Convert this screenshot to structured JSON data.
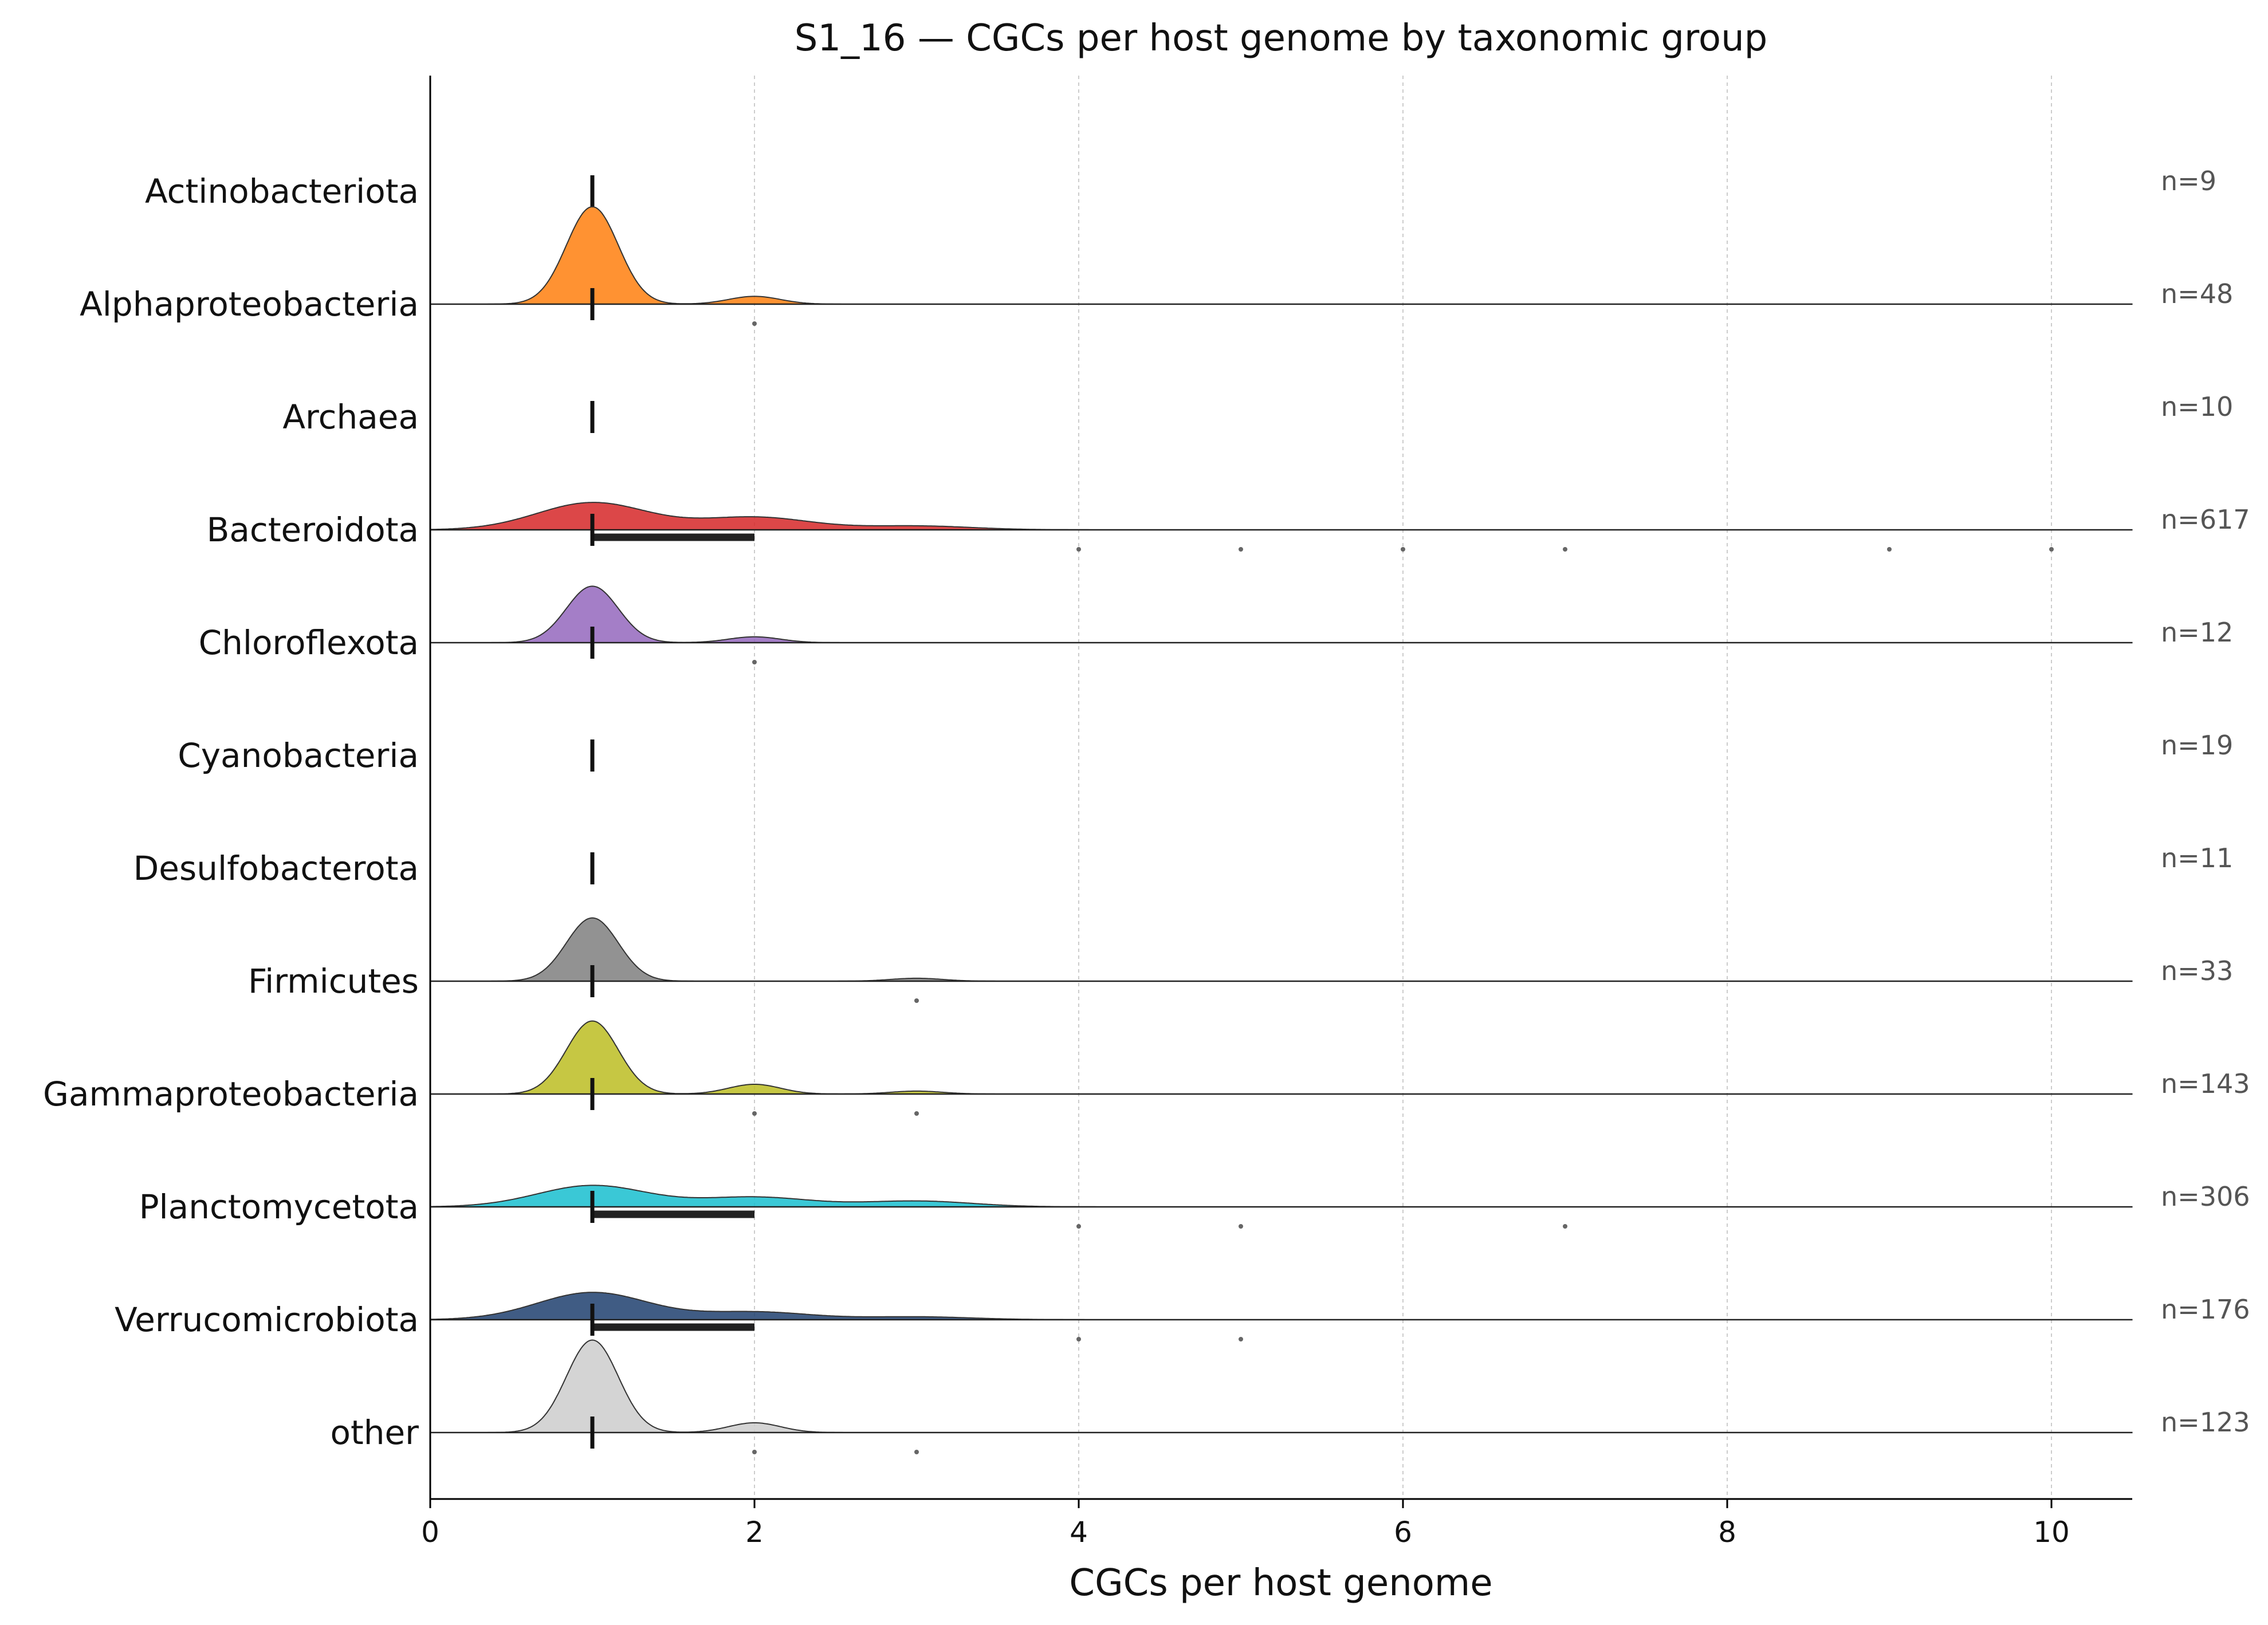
{
  "chart_data": {
    "type": "ridgeline",
    "title": "S1_16 — CGCs per host genome by taxonomic group",
    "xlabel": "CGCs per host genome",
    "ylabel": "",
    "xlim": [
      0,
      10.5
    ],
    "xticks": [
      0,
      2,
      4,
      6,
      8,
      10
    ],
    "grid": "x-dotted",
    "groups": [
      {
        "name": "Actinobacteriota",
        "n_label": "n=9",
        "color": "#1f77b4",
        "peaks": [],
        "median": 1,
        "iqr": null,
        "outliers": []
      },
      {
        "name": "Alphaproteobacteria",
        "n_label": "n=48",
        "color": "#ff7f0e",
        "peaks": [
          [
            1,
            1.0
          ],
          [
            2,
            0.08
          ]
        ],
        "median": 1,
        "iqr": null,
        "outliers": [
          2
        ]
      },
      {
        "name": "Archaea",
        "n_label": "n=10",
        "color": "#2ca02c",
        "peaks": [],
        "median": 1,
        "iqr": null,
        "outliers": []
      },
      {
        "name": "Bacteroidota",
        "n_label": "n=617",
        "color": "#d62728",
        "peaks": [
          [
            1,
            0.28
          ],
          [
            2,
            0.13
          ],
          [
            3,
            0.04
          ]
        ],
        "median": 1,
        "iqr": [
          1,
          2
        ],
        "outliers": [
          4,
          5,
          6,
          7,
          9,
          10
        ]
      },
      {
        "name": "Chloroflexota",
        "n_label": "n=12",
        "color": "#9467bd",
        "peaks": [
          [
            1,
            0.58
          ],
          [
            2,
            0.06
          ]
        ],
        "median": 1,
        "iqr": null,
        "outliers": [
          2
        ]
      },
      {
        "name": "Cyanobacteria",
        "n_label": "n=19",
        "color": "#8c564b",
        "peaks": [],
        "median": 1,
        "iqr": null,
        "outliers": []
      },
      {
        "name": "Desulfobacterota",
        "n_label": "n=11",
        "color": "#e377c2",
        "peaks": [],
        "median": 1,
        "iqr": null,
        "outliers": []
      },
      {
        "name": "Firmicutes",
        "n_label": "n=33",
        "color": "#7f7f7f",
        "peaks": [
          [
            1,
            0.65
          ],
          [
            3,
            0.03
          ]
        ],
        "median": 1,
        "iqr": null,
        "outliers": [
          3
        ]
      },
      {
        "name": "Gammaproteobacteria",
        "n_label": "n=143",
        "color": "#bcbd22",
        "peaks": [
          [
            1,
            0.75
          ],
          [
            2,
            0.1
          ],
          [
            3,
            0.03
          ]
        ],
        "median": 1,
        "iqr": null,
        "outliers": [
          2,
          3
        ]
      },
      {
        "name": "Planctomycetota",
        "n_label": "n=306",
        "color": "#17becf",
        "peaks": [
          [
            1,
            0.22
          ],
          [
            2,
            0.1
          ],
          [
            3,
            0.06
          ]
        ],
        "median": 1,
        "iqr": [
          1,
          2
        ],
        "outliers": [
          4,
          5,
          7
        ]
      },
      {
        "name": "Verrucomicrobiota",
        "n_label": "n=176",
        "color": "#1f3f6e",
        "peaks": [
          [
            1,
            0.28
          ],
          [
            2,
            0.08
          ],
          [
            3,
            0.03
          ]
        ],
        "median": 1,
        "iqr": [
          1,
          2
        ],
        "outliers": [
          4,
          5
        ]
      },
      {
        "name": "other",
        "n_label": "n=123",
        "color": "#cccccc",
        "peaks": [
          [
            1,
            0.95
          ],
          [
            2,
            0.1
          ]
        ],
        "median": 1,
        "iqr": null,
        "outliers": [
          2,
          3
        ]
      }
    ]
  }
}
